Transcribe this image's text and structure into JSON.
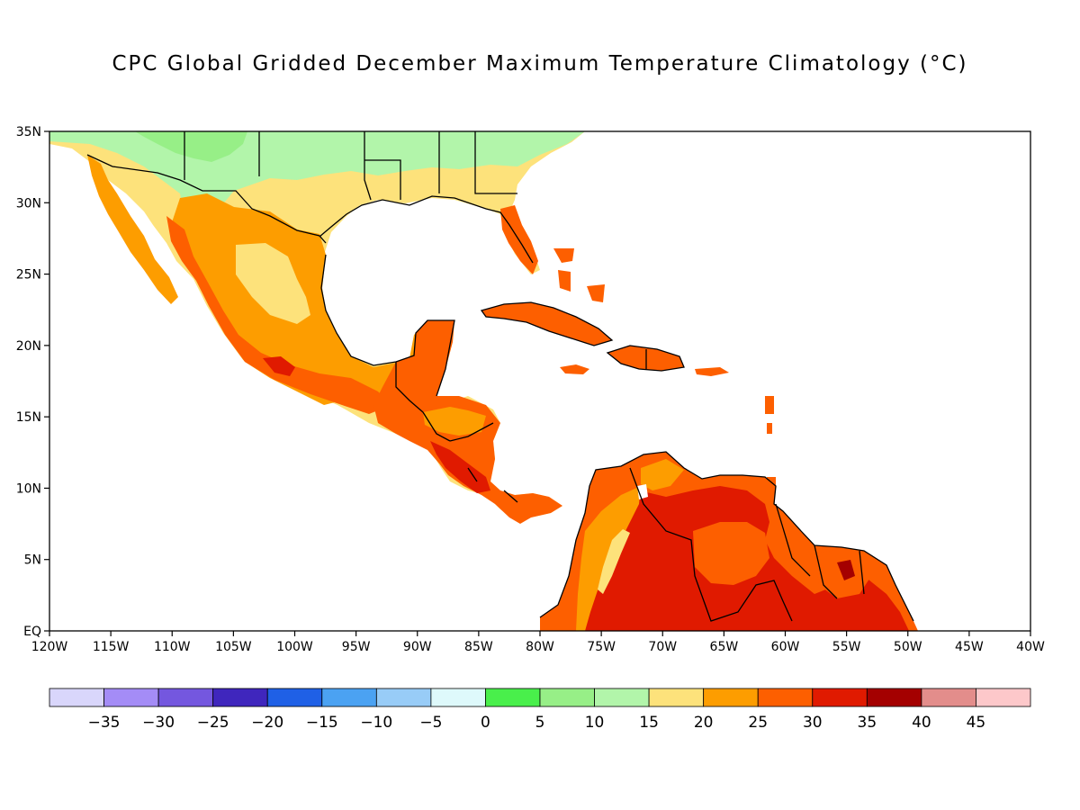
{
  "title": "CPC Global Gridded December Maximum Temperature Climatology (°C)",
  "map": {
    "lon_range": [
      -120,
      -40
    ],
    "lat_range": [
      0,
      35
    ],
    "x_ticks": [
      "120W",
      "115W",
      "110W",
      "105W",
      "100W",
      "95W",
      "90W",
      "85W",
      "80W",
      "75W",
      "70W",
      "65W",
      "60W",
      "55W",
      "50W",
      "45W",
      "40W"
    ],
    "y_ticks": [
      "EQ",
      "5N",
      "10N",
      "15N",
      "20N",
      "25N",
      "30N",
      "35N"
    ]
  },
  "colorbar": {
    "labels": [
      "-35",
      "-30",
      "-25",
      "-20",
      "-15",
      "-10",
      "-5",
      "0",
      "5",
      "10",
      "15",
      "20",
      "25",
      "30",
      "35",
      "40",
      "45"
    ],
    "colors": [
      "#d9d6fb",
      "#a48cf6",
      "#7457df",
      "#3f26bd",
      "#1f60e6",
      "#4ba2f2",
      "#98ccf7",
      "#def9fb",
      "#49ef4b",
      "#97ef87",
      "#b2f5aa",
      "#fde27b",
      "#fd9d00",
      "#fd5f00",
      "#e01a00",
      "#a40000",
      "#e38d8b",
      "#fdc8ca"
    ]
  },
  "palette": {
    "t10": "#97ef87",
    "t15": "#b2f5aa",
    "t20": "#fde27b",
    "t25": "#fd9d00",
    "t30": "#fd5f00",
    "t35": "#e01a00",
    "t40": "#a40000"
  }
}
